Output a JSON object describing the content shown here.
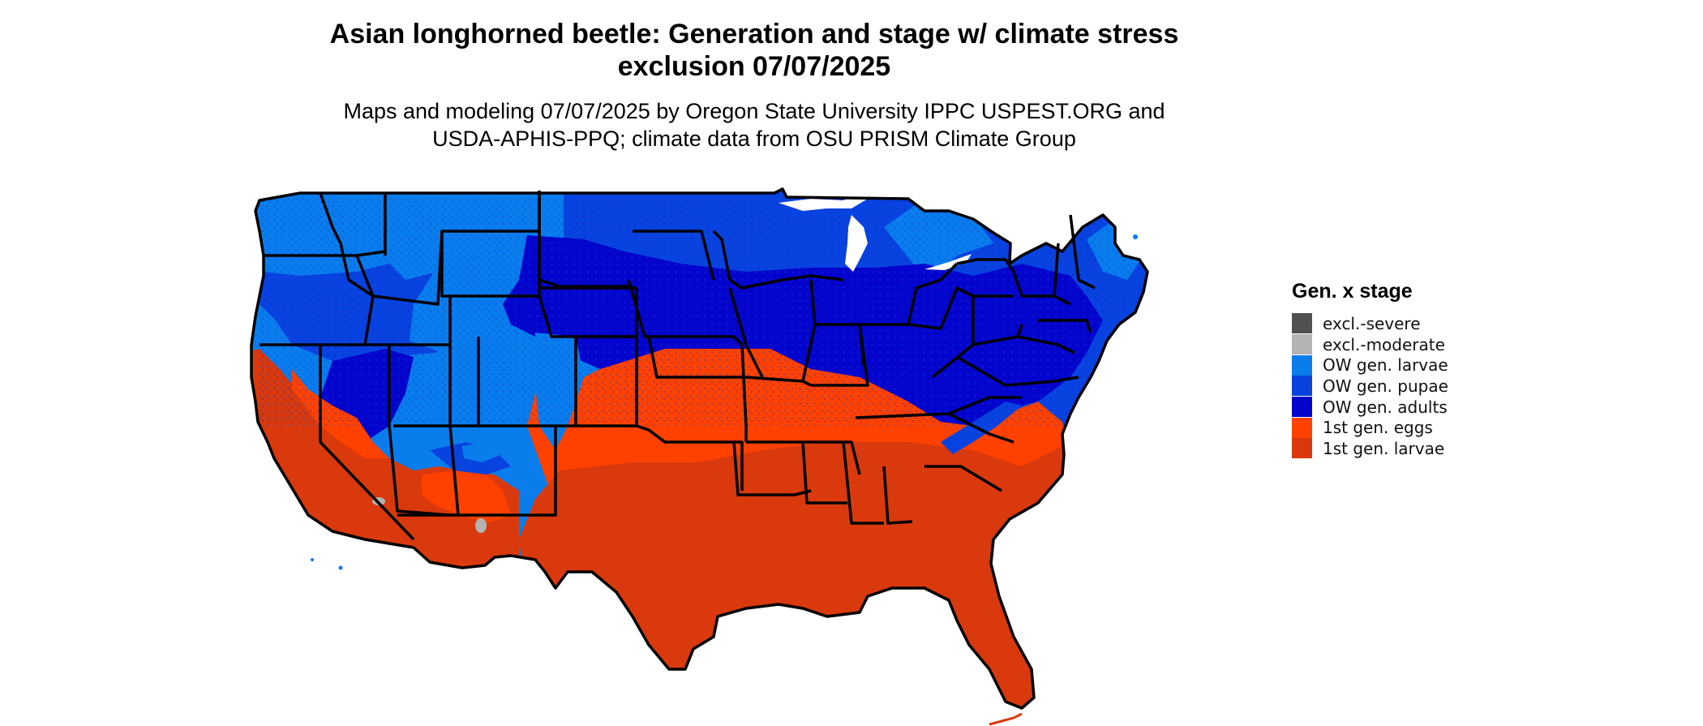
{
  "header": {
    "title_line1": "Asian longhorned beetle: Generation and stage w/ climate stress",
    "title_line2": "exclusion 07/07/2025",
    "subtitle_line1": "Maps and modeling 07/07/2025 by Oregon State University IPPC USPEST.ORG and",
    "subtitle_line2": "USDA-APHIS-PPQ; climate data from OSU PRISM Climate Group"
  },
  "legend": {
    "title": "Gen. x stage",
    "items": [
      {
        "label": "excl.-severe",
        "color": "#505050"
      },
      {
        "label": "excl.-moderate",
        "color": "#b4b4b4"
      },
      {
        "label": "OW gen. larvae",
        "color": "#0a7ded"
      },
      {
        "label": "OW gen. pupae",
        "color": "#0843df"
      },
      {
        "label": "OW gen. adults",
        "color": "#0404cc"
      },
      {
        "label": "1st gen. eggs",
        "color": "#ff4100"
      },
      {
        "label": "1st gen. larvae",
        "color": "#d9390c"
      }
    ]
  }
}
